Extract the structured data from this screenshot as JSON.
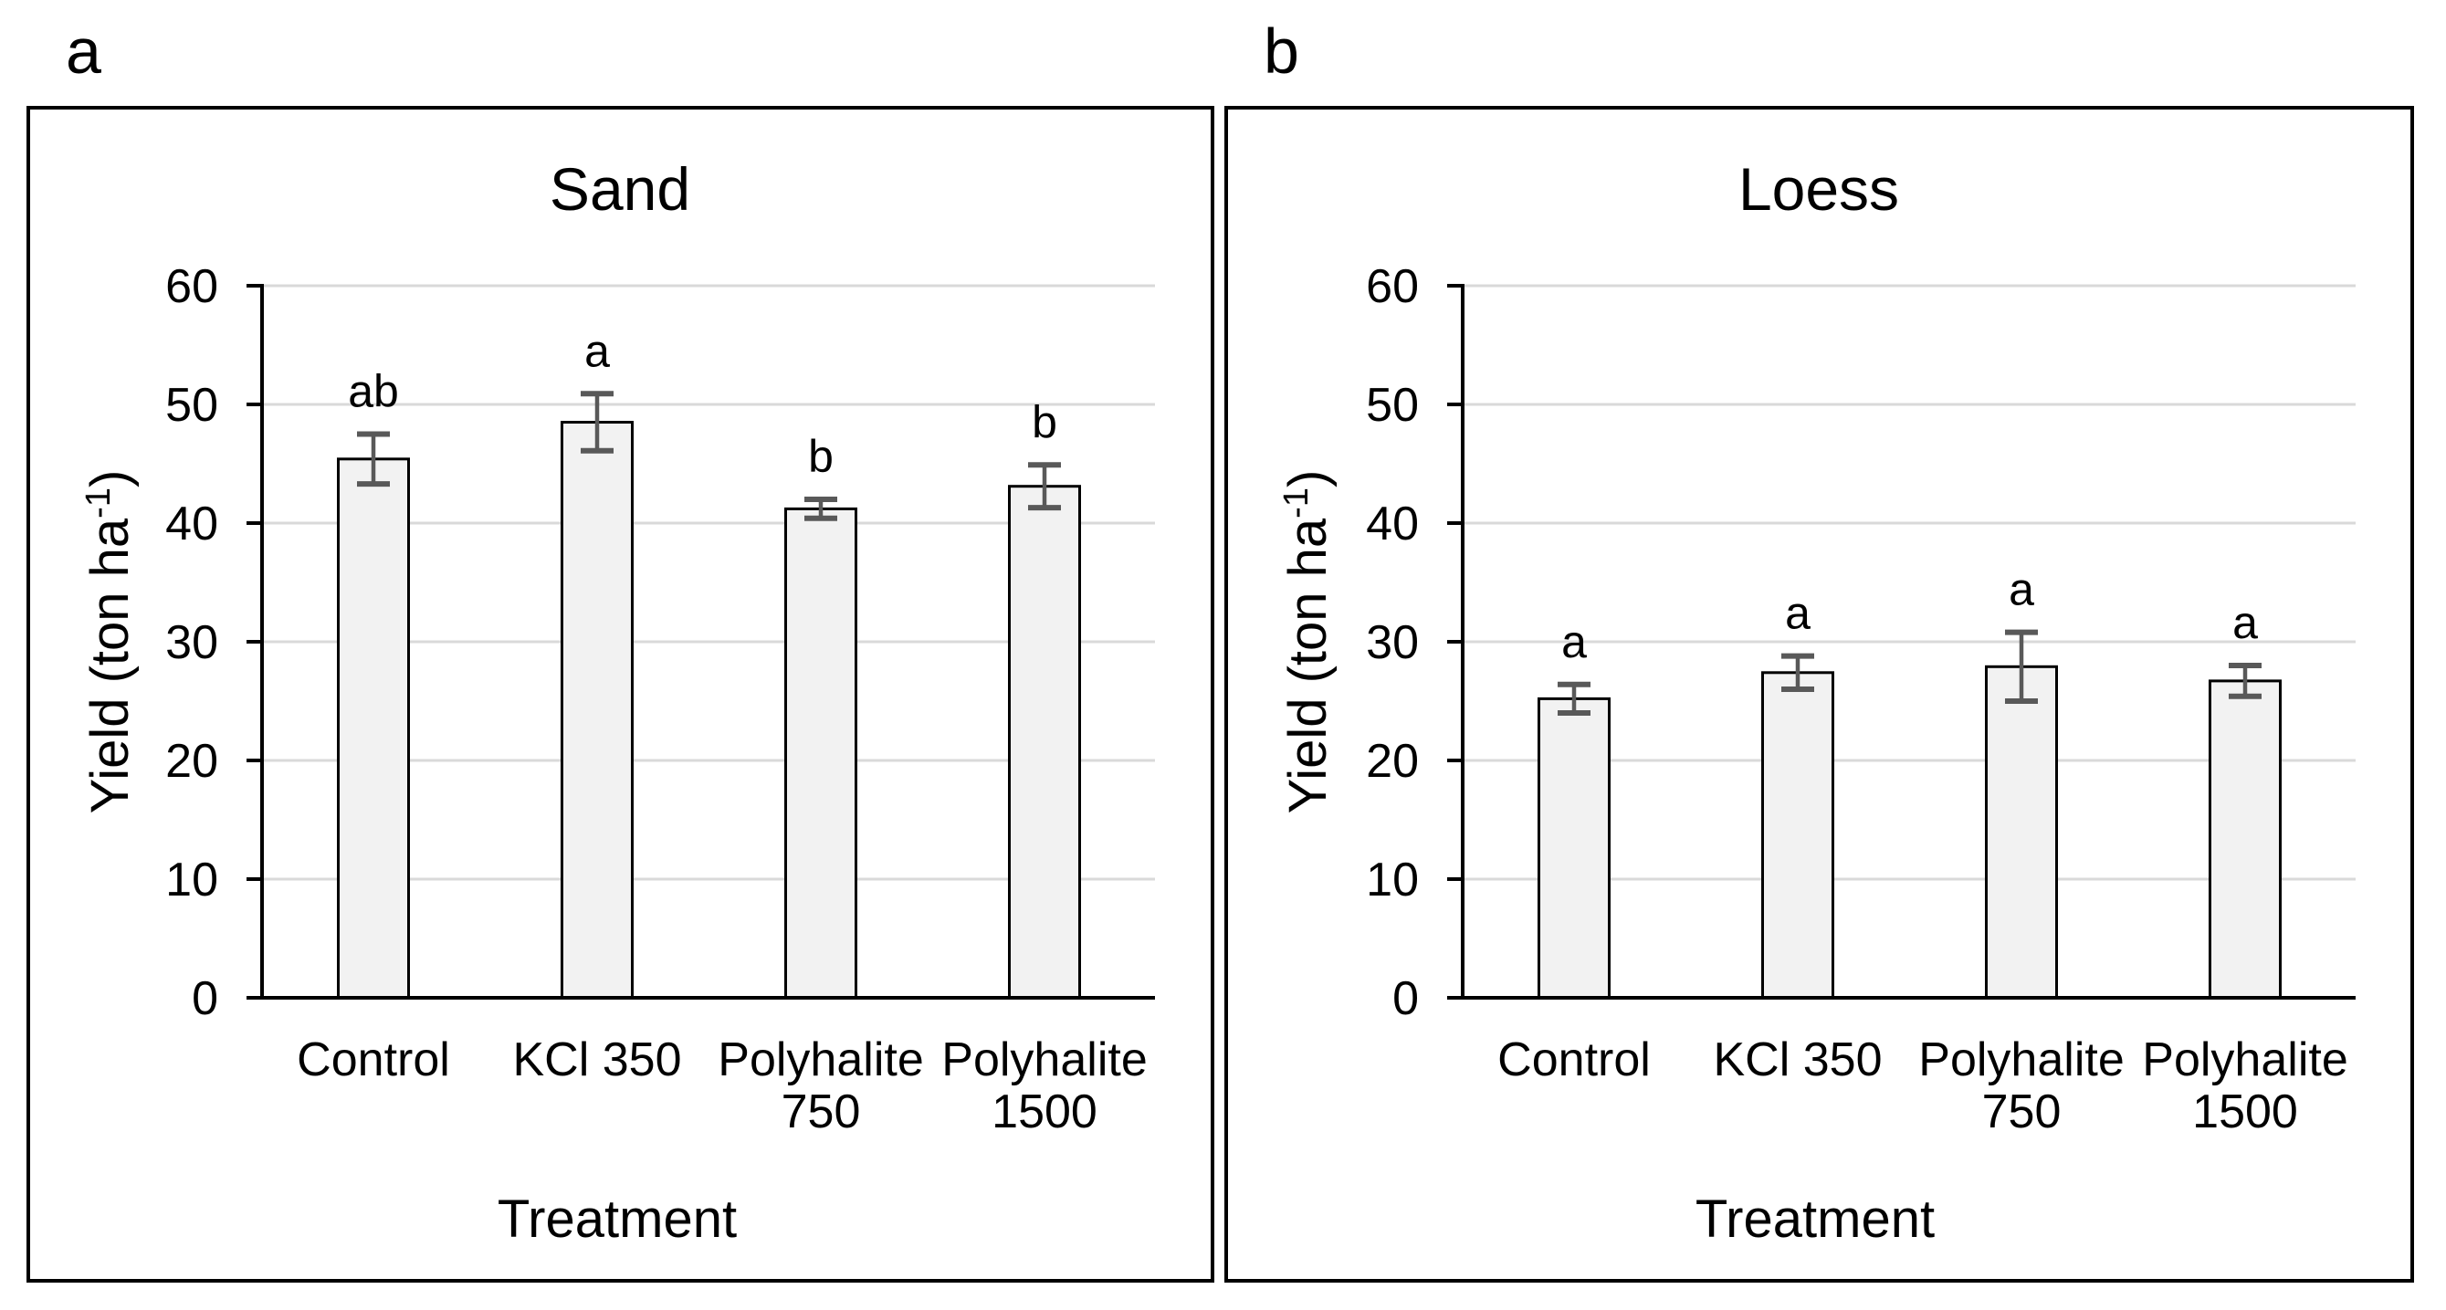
{
  "figure": {
    "background": "#ffffff",
    "panel_labels": [
      "a",
      "b"
    ]
  },
  "styles": {
    "bar_fill": "#F2F2F2",
    "bar_border": "#000000",
    "error_bar_color": "#595959",
    "gridline_color": "#D9D9D9",
    "axis_color": "#000000",
    "text_color": "#000000",
    "panel_border_color": "#000000"
  },
  "chart_data": [
    {
      "type": "bar",
      "panel_label": "a",
      "title": "Sand",
      "xlabel": "Treatment",
      "ylabel": "Yield (ton ha⁻¹)",
      "ylabel_parts": {
        "prefix": "Yield (ton ha",
        "sup": "-1",
        "suffix": ")"
      },
      "categories": [
        "Control",
        "KCl 350",
        "Polyhalite 750",
        "Polyhalite 1500"
      ],
      "label_lines": [
        [
          "Control"
        ],
        [
          "KCl 350"
        ],
        [
          "Polyhalite",
          "750"
        ],
        [
          "Polyhalite",
          "1500"
        ]
      ],
      "values": [
        45.4,
        48.5,
        41.2,
        43.1
      ],
      "error_bars": [
        2.1,
        2.4,
        0.8,
        1.8
      ],
      "sig_letters": [
        "ab",
        "a",
        "b",
        "b"
      ],
      "ylim": [
        0,
        60
      ],
      "yticks": [
        0,
        10,
        20,
        30,
        40,
        50,
        60
      ],
      "grid": true,
      "legend": "none"
    },
    {
      "type": "bar",
      "panel_label": "b",
      "title": "Loess",
      "xlabel": "Treatment",
      "ylabel": "Yield (ton ha⁻¹)",
      "ylabel_parts": {
        "prefix": "Yield (ton ha",
        "sup": "-1",
        "suffix": ")"
      },
      "categories": [
        "Control",
        "KCl 350",
        "Polyhalite 750",
        "Polyhalite 1500"
      ],
      "label_lines": [
        [
          "Control"
        ],
        [
          "KCl 350"
        ],
        [
          "Polyhalite",
          "750"
        ],
        [
          "Polyhalite",
          "1500"
        ]
      ],
      "values": [
        25.2,
        27.4,
        27.9,
        26.7
      ],
      "error_bars": [
        1.2,
        1.4,
        2.9,
        1.3
      ],
      "sig_letters": [
        "a",
        "a",
        "a",
        "a"
      ],
      "ylim": [
        0,
        60
      ],
      "yticks": [
        0,
        10,
        20,
        30,
        40,
        50,
        60
      ],
      "grid": true,
      "legend": "none"
    }
  ]
}
